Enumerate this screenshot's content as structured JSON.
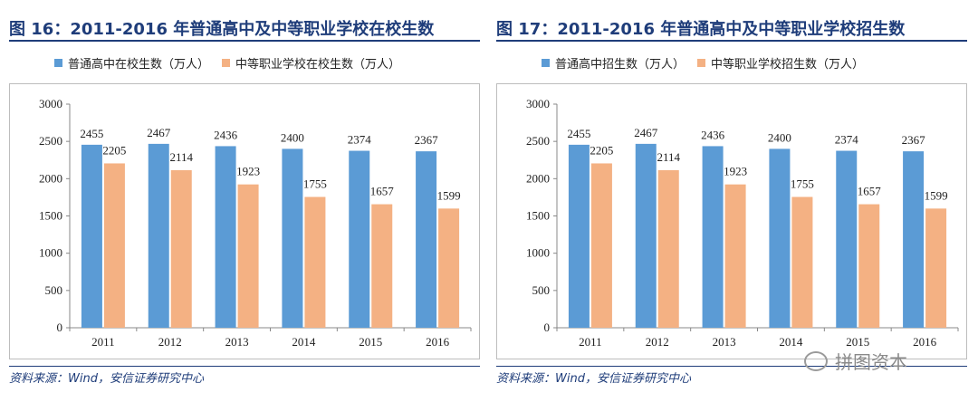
{
  "colors": {
    "blue": "#5b9bd5",
    "orange": "#f4b183",
    "title": "#1f3d7a"
  },
  "chart_data": [
    {
      "type": "bar",
      "title": "图 16：2011-2016 年普通高中及中等职业学校在校生数",
      "categories": [
        "2011",
        "2012",
        "2013",
        "2014",
        "2015",
        "2016"
      ],
      "series": [
        {
          "name": "普通高中在校生数（万人）",
          "values": [
            2455,
            2467,
            2436,
            2400,
            2374,
            2367
          ]
        },
        {
          "name": "中等职业学校在校生数（万人）",
          "values": [
            2205,
            2114,
            1923,
            1755,
            1657,
            1599
          ]
        }
      ],
      "ylim": [
        0,
        3000
      ],
      "yticks": [
        "0",
        "500",
        "1000",
        "1500",
        "2000",
        "2500",
        "3000"
      ],
      "legend": "top",
      "source": "资料来源：Wind，安信证券研究中心"
    },
    {
      "type": "bar",
      "title": "图 17：2011-2016 年普通高中及中等职业学校招生数",
      "categories": [
        "2011",
        "2012",
        "2013",
        "2014",
        "2015",
        "2016"
      ],
      "series": [
        {
          "name": "普通高中招生数（万人）",
          "values": [
            2455,
            2467,
            2436,
            2400,
            2374,
            2367
          ]
        },
        {
          "name": "中等职业学校招生数（万人）",
          "values": [
            2205,
            2114,
            1923,
            1755,
            1657,
            1599
          ]
        }
      ],
      "ylim": [
        0,
        3000
      ],
      "yticks": [
        "0",
        "500",
        "1000",
        "1500",
        "2000",
        "2500",
        "3000"
      ],
      "legend": "top",
      "source": "资料来源：Wind，安信证券研究中心"
    }
  ],
  "watermark": {
    "text": "拼图资本"
  }
}
